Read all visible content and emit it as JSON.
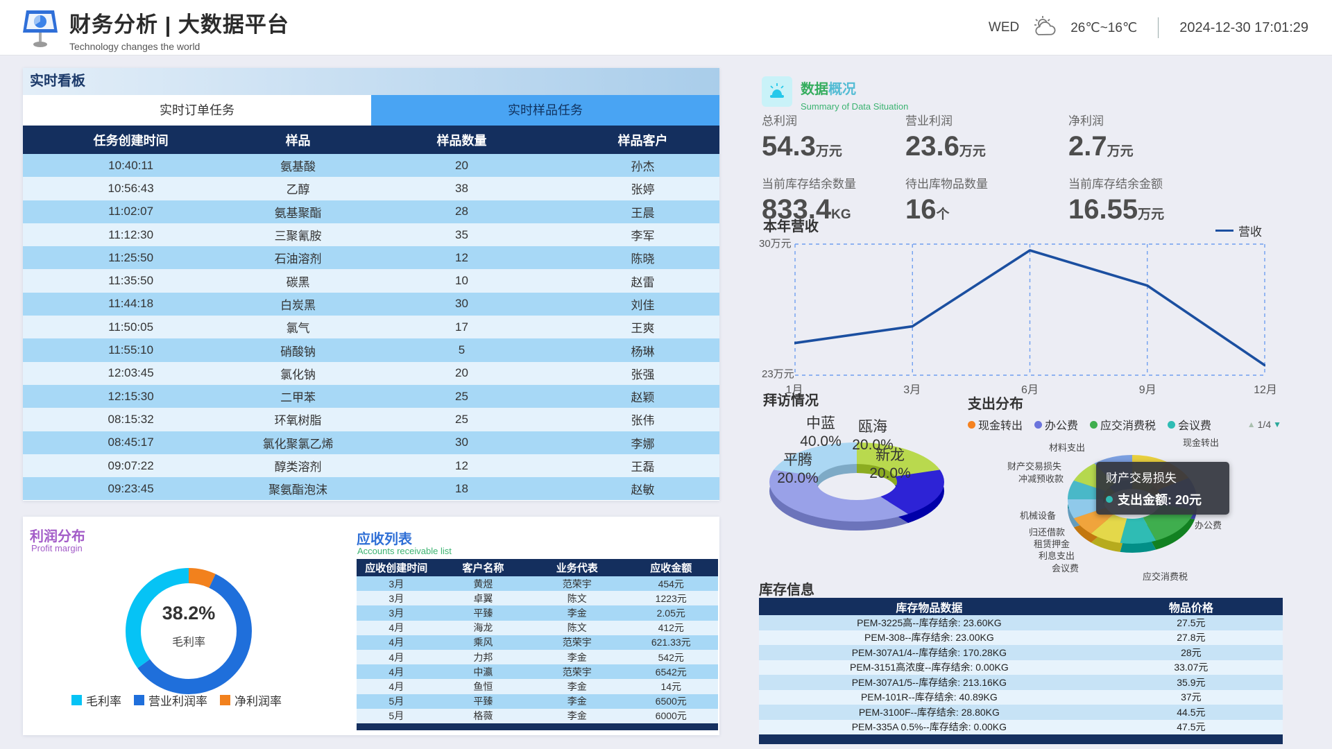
{
  "header": {
    "title": "财务分析 | 大数据平台",
    "subtitle": "Technology changes the world",
    "weekday": "WED",
    "temperature": "26℃~16℃",
    "datetime": "2024-12-30 17:01:29"
  },
  "realtime": {
    "panel_title": "实时看板",
    "tabs": [
      {
        "label": "实时订单任务",
        "active": false
      },
      {
        "label": "实时样品任务",
        "active": true
      }
    ],
    "columns": [
      "任务创建时间",
      "样品",
      "样品数量",
      "样品客户"
    ],
    "rows": [
      [
        "10:40:11",
        "氨基酸",
        "20",
        "孙杰"
      ],
      [
        "10:56:43",
        "乙醇",
        "38",
        "张婷"
      ],
      [
        "11:02:07",
        "氨基聚酯",
        "28",
        "王晨"
      ],
      [
        "11:12:30",
        "三聚氰胺",
        "35",
        "李军"
      ],
      [
        "11:25:50",
        "石油溶剂",
        "12",
        "陈晓"
      ],
      [
        "11:35:50",
        "碳黑",
        "10",
        "赵雷"
      ],
      [
        "11:44:18",
        "白炭黑",
        "30",
        "刘佳"
      ],
      [
        "11:50:05",
        "氯气",
        "17",
        "王爽"
      ],
      [
        "11:55:10",
        "硝酸钠",
        "5",
        "杨琳"
      ],
      [
        "12:03:45",
        "氯化钠",
        "20",
        "张强"
      ],
      [
        "12:15:30",
        "二甲苯",
        "25",
        "赵颖"
      ],
      [
        "08:15:32",
        "环氧树脂",
        "25",
        "张伟"
      ],
      [
        "08:45:17",
        "氯化聚氯乙烯",
        "30",
        "李娜"
      ],
      [
        "09:07:22",
        "醇类溶剂",
        "12",
        "王磊"
      ],
      [
        "09:23:45",
        "聚氨酯泡沫",
        "18",
        "赵敏"
      ]
    ]
  },
  "profit": {
    "title": "利润分布",
    "subtitle": "Profit margin",
    "chart_data": {
      "type": "donut",
      "center_value": "38.2%",
      "center_label": "毛利率",
      "segments": [
        {
          "label": "净利润率",
          "pct": 7,
          "color": "#f2811d"
        },
        {
          "label": "营业利润率",
          "pct": 58,
          "color": "#1f6fdb"
        },
        {
          "label": "毛利率",
          "pct": 35,
          "color": "#06c3f5"
        }
      ]
    },
    "legend": [
      {
        "label": "毛利率",
        "color": "#06c3f5"
      },
      {
        "label": "营业利润率",
        "color": "#1f6fdb"
      },
      {
        "label": "净利润率",
        "color": "#f2811d"
      }
    ]
  },
  "receivables": {
    "title": "应收列表",
    "subtitle": "Accounts receivable list",
    "columns": [
      "应收创建时间",
      "客户名称",
      "业务代表",
      "应收金额"
    ],
    "rows": [
      [
        "3月",
        "黄煜",
        "范荣宇",
        "454元"
      ],
      [
        "3月",
        "卓翼",
        "陈文",
        "1223元"
      ],
      [
        "3月",
        "平臻",
        "李金",
        "2.05元"
      ],
      [
        "4月",
        "海龙",
        "陈文",
        "412元"
      ],
      [
        "4月",
        "乘风",
        "范荣宇",
        "621.33元"
      ],
      [
        "4月",
        "力邦",
        "李金",
        "542元"
      ],
      [
        "4月",
        "中瀛",
        "范荣宇",
        "6542元"
      ],
      [
        "4月",
        "鱼恒",
        "李金",
        "14元"
      ],
      [
        "5月",
        "平臻",
        "李金",
        "6500元"
      ],
      [
        "5月",
        "格薇",
        "李金",
        "6000元"
      ]
    ]
  },
  "overview": {
    "title_part1": "数据",
    "title_part2": "概况",
    "subtitle": "Summary of Data Situation",
    "stats": [
      {
        "label": "总利润",
        "value": "54.3",
        "unit": "万元"
      },
      {
        "label": "营业利润",
        "value": "23.6",
        "unit": "万元"
      },
      {
        "label": "净利润",
        "value": "2.7",
        "unit": "万元"
      },
      {
        "label": "当前库存结余数量",
        "value": "833.4",
        "unit": "KG"
      },
      {
        "label": "待出库物品数量",
        "value": "16",
        "unit": "个"
      },
      {
        "label": "当前库存结余金额",
        "value": "16.55",
        "unit": "万元"
      }
    ]
  },
  "revenue": {
    "title": "本年营收",
    "legend_label": "营收",
    "chart_data": {
      "type": "line",
      "x": [
        "1月",
        "3月",
        "6月",
        "9月",
        "12月"
      ],
      "series": [
        {
          "name": "营收",
          "values": [
            24.7,
            25.6,
            29.7,
            27.8,
            23.5
          ]
        }
      ],
      "ylim": [
        23,
        30
      ],
      "ytick_top": "30万元",
      "ytick_bottom": "23万元",
      "line_color": "#1b4fa0",
      "grid": "dashed-box"
    }
  },
  "visits": {
    "title": "拜访情况",
    "chart_data": {
      "type": "pie",
      "slices": [
        {
          "label": "瓯海",
          "pct": 20.0,
          "color": "#b9d94e"
        },
        {
          "label": "新龙",
          "pct": 20.0,
          "color": "#2d23d6"
        },
        {
          "label": "中蓝",
          "pct": 40.0,
          "color": "#99a1e8"
        },
        {
          "label": "平腾",
          "pct": 20.0,
          "color": "#abd7f3"
        }
      ]
    }
  },
  "expense": {
    "title": "支出分布",
    "legend": [
      {
        "label": "现金转出",
        "color": "#f58220"
      },
      {
        "label": "办公费",
        "color": "#6b74dc"
      },
      {
        "label": "应交消费税",
        "color": "#3fae4e"
      },
      {
        "label": "会议费",
        "color": "#2fbcb4"
      }
    ],
    "pagination": "1/4",
    "chart_data": {
      "type": "pie",
      "slices": [
        {
          "label": "材料支出",
          "pct": 9,
          "color": "#e8cf3e"
        },
        {
          "label": "现金转出",
          "pct": 8,
          "color": "#f59a23"
        },
        {
          "label": "办公费",
          "pct": 12,
          "color": "#6b74dc"
        },
        {
          "label": "应交消费税",
          "pct": 15,
          "color": "#3fae4e"
        },
        {
          "label": "会议费",
          "pct": 9,
          "color": "#2fbcb4"
        },
        {
          "label": "利息支出",
          "pct": 8,
          "color": "#e4d84a"
        },
        {
          "label": "租赁押金",
          "pct": 7,
          "color": "#f0a43c"
        },
        {
          "label": "归还借款",
          "pct": 7,
          "color": "#8fc9ea"
        },
        {
          "label": "机械设备",
          "pct": 7,
          "color": "#49b8c8"
        },
        {
          "label": "冲减预收款",
          "pct": 8,
          "color": "#b5d84e"
        },
        {
          "label": "财产交易损失",
          "pct": 10,
          "color": "#7b9fe0"
        }
      ]
    },
    "tooltip": {
      "title": "财产交易损失",
      "text": "支出金额: 20元",
      "dot_color": "#2fbcb4"
    }
  },
  "inventory": {
    "title": "库存信息",
    "columns": [
      "库存物品数据",
      "物品价格"
    ],
    "rows": [
      [
        "PEM-3225高--库存结余: 23.60KG",
        "27.5元"
      ],
      [
        "PEM-308--库存结余: 23.00KG",
        "27.8元"
      ],
      [
        "PEM-307A1/4--库存结余: 170.28KG",
        "28元"
      ],
      [
        "PEM-3151高浓度--库存结余: 0.00KG",
        "33.07元"
      ],
      [
        "PEM-307A1/5--库存结余: 213.16KG",
        "35.9元"
      ],
      [
        "PEM-101R--库存结余: 40.89KG",
        "37元"
      ],
      [
        "PEM-3100F--库存结余: 28.80KG",
        "44.5元"
      ],
      [
        "PEM-335A 0.5%--库存结余: 0.00KG",
        "47.5元"
      ]
    ]
  }
}
